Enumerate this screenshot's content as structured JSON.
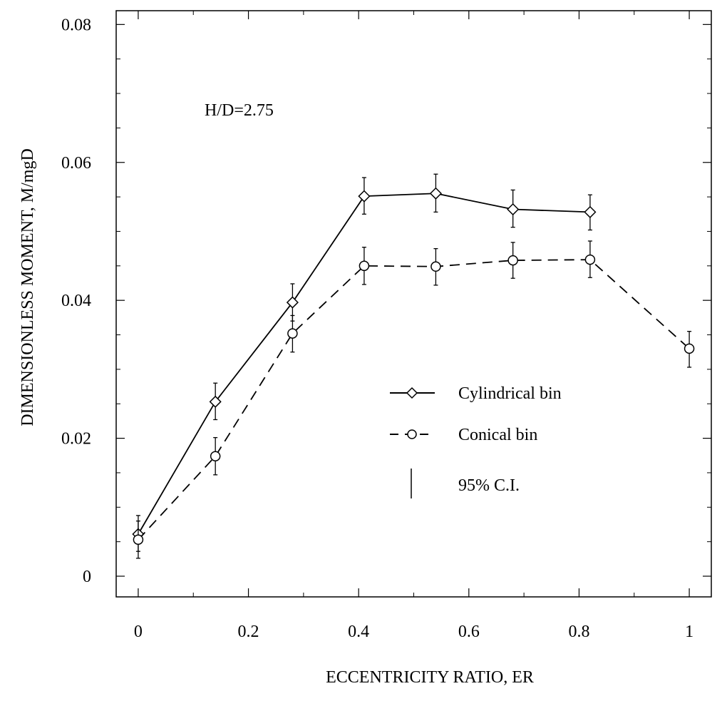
{
  "chart_data": {
    "type": "line",
    "title": "",
    "xlabel": "ECCENTRICITY RATIO, ER",
    "ylabel": "DIMENSIONLESS MOMENT, M/mgD",
    "annotation": "H/D=2.75",
    "xlim": [
      -0.04,
      1.04
    ],
    "ylim": [
      -0.003,
      0.082
    ],
    "xticks": [
      0,
      0.2,
      0.4,
      0.6,
      0.8,
      1
    ],
    "xtick_labels": [
      "0",
      "0.2",
      "0.4",
      "0.6",
      "0.8",
      "1"
    ],
    "yticks": [
      0,
      0.02,
      0.04,
      0.06,
      0.08
    ],
    "ytick_labels": [
      "0",
      "0.02",
      "0.04",
      "0.06",
      "0.08"
    ],
    "grid": false,
    "legend_placement": "center-right",
    "series": [
      {
        "name": "Cylindrical bin",
        "line": "solid",
        "marker": "diamond",
        "points": [
          {
            "x": 0.0,
            "y": 0.0061,
            "lo": 0.0036,
            "hi": 0.0088
          },
          {
            "x": 0.14,
            "y": 0.0253,
            "lo": 0.0227,
            "hi": 0.028
          },
          {
            "x": 0.28,
            "y": 0.0397,
            "lo": 0.037,
            "hi": 0.0424
          },
          {
            "x": 0.41,
            "y": 0.0551,
            "lo": 0.0525,
            "hi": 0.0578
          },
          {
            "x": 0.54,
            "y": 0.0555,
            "lo": 0.0528,
            "hi": 0.0583
          },
          {
            "x": 0.68,
            "y": 0.0532,
            "lo": 0.0506,
            "hi": 0.056
          },
          {
            "x": 0.82,
            "y": 0.0528,
            "lo": 0.0502,
            "hi": 0.0553
          }
        ]
      },
      {
        "name": "Conical bin",
        "line": "dashed",
        "marker": "circle",
        "points": [
          {
            "x": 0.0,
            "y": 0.0053,
            "lo": 0.0026,
            "hi": 0.008
          },
          {
            "x": 0.14,
            "y": 0.0174,
            "lo": 0.0147,
            "hi": 0.0201
          },
          {
            "x": 0.28,
            "y": 0.0352,
            "lo": 0.0325,
            "hi": 0.0378
          },
          {
            "x": 0.41,
            "y": 0.045,
            "lo": 0.0423,
            "hi": 0.0477
          },
          {
            "x": 0.54,
            "y": 0.0449,
            "lo": 0.0422,
            "hi": 0.0475
          },
          {
            "x": 0.68,
            "y": 0.0458,
            "lo": 0.0432,
            "hi": 0.0484
          },
          {
            "x": 0.82,
            "y": 0.0459,
            "lo": 0.0433,
            "hi": 0.0486
          },
          {
            "x": 1.0,
            "y": 0.033,
            "lo": 0.0303,
            "hi": 0.0355
          }
        ]
      }
    ],
    "legend_ci_label": "95% C.I."
  }
}
